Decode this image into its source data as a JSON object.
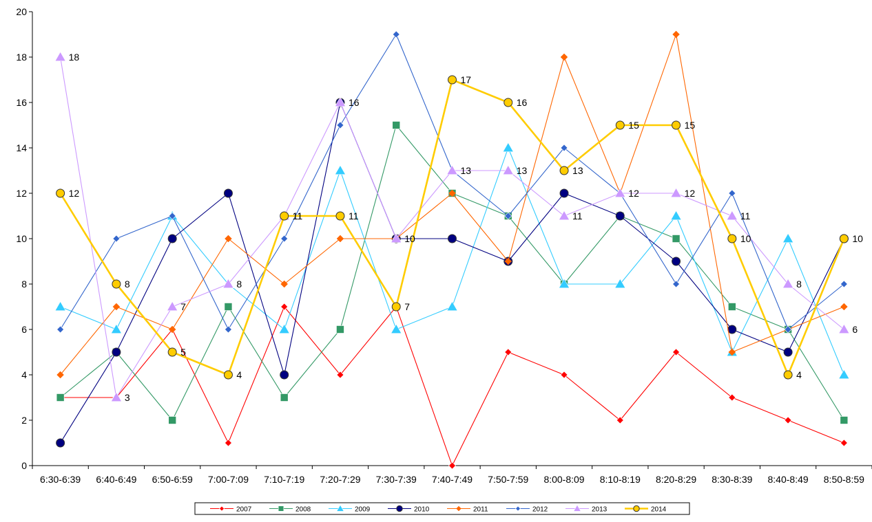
{
  "chart_data": {
    "type": "line",
    "title": "",
    "xlabel": "",
    "ylabel": "",
    "ylim": [
      0,
      20
    ],
    "ytick_step": 2,
    "yticks": [
      "0",
      "2",
      "4",
      "6",
      "8",
      "10",
      "12",
      "14",
      "16",
      "18",
      "20"
    ],
    "grid": false,
    "legend_position": "bottom",
    "categories": [
      "6:30-6:39",
      "6:40-6:49",
      "6:50-6:59",
      "7:00-7:09",
      "7:10-7:19",
      "7:20-7:29",
      "7:30-7:39",
      "7:40-7:49",
      "7:50-7:59",
      "8:00-8:09",
      "8:10-8:19",
      "8:20-8:29",
      "8:30-8:39",
      "8:40-8:49",
      "8:50-8:59"
    ],
    "series": [
      {
        "name": "2007",
        "color": "#ff0000",
        "marker": "diamond",
        "values": [
          3,
          3,
          6,
          1,
          7,
          4,
          7,
          0,
          5,
          4,
          2,
          5,
          3,
          2,
          1
        ]
      },
      {
        "name": "2008",
        "color": "#339966",
        "marker": "square",
        "values": [
          3,
          5,
          2,
          7,
          3,
          6,
          15,
          12,
          11,
          8,
          11,
          10,
          7,
          6,
          2
        ]
      },
      {
        "name": "2009",
        "color": "#33ccff",
        "marker": "triangle",
        "values": [
          7,
          6,
          11,
          8,
          6,
          13,
          6,
          7,
          14,
          8,
          8,
          11,
          5,
          10,
          4
        ]
      },
      {
        "name": "2010",
        "color": "#000080",
        "marker": "circle",
        "values": [
          1,
          5,
          10,
          12,
          4,
          16,
          10,
          10,
          9,
          12,
          11,
          9,
          6,
          5,
          10
        ]
      },
      {
        "name": "2011",
        "color": "#ff6600",
        "marker": "star",
        "values": [
          4,
          7,
          6,
          10,
          8,
          10,
          10,
          12,
          9,
          18,
          12,
          19,
          5,
          6,
          7
        ]
      },
      {
        "name": "2012",
        "color": "#3366cc",
        "marker": "diamond",
        "values": [
          6,
          10,
          11,
          6,
          10,
          15,
          19,
          13,
          11,
          14,
          12,
          8,
          12,
          6,
          8
        ]
      },
      {
        "name": "2013",
        "color": "#cc99ff",
        "marker": "triangle",
        "values": [
          18,
          3,
          7,
          8,
          11,
          16,
          10,
          13,
          13,
          11,
          12,
          12,
          11,
          8,
          6
        ]
      },
      {
        "name": "2014",
        "color": "#ffcc00",
        "marker": "circle",
        "values": [
          12,
          8,
          5,
          4,
          11,
          11,
          7,
          17,
          16,
          13,
          15,
          15,
          10,
          4,
          10
        ]
      }
    ],
    "data_labels": [
      {
        "series": "2013",
        "index": 0,
        "text": "18"
      },
      {
        "series": "2014",
        "index": 0,
        "text": "12"
      },
      {
        "series": "2014",
        "index": 1,
        "text": "8"
      },
      {
        "series": "2013",
        "index": 1,
        "text": "3"
      },
      {
        "series": "2013",
        "index": 2,
        "text": "7"
      },
      {
        "series": "2014",
        "index": 2,
        "text": "5"
      },
      {
        "series": "2013",
        "index": 3,
        "text": "8"
      },
      {
        "series": "2014",
        "index": 3,
        "text": "4"
      },
      {
        "series": "2014",
        "index": 4,
        "text": "11"
      },
      {
        "series": "2013",
        "index": 4,
        "text": "11"
      },
      {
        "series": "2013",
        "index": 5,
        "text": "16"
      },
      {
        "series": "2014",
        "index": 5,
        "text": "11"
      },
      {
        "series": "2013",
        "index": 6,
        "text": "10"
      },
      {
        "series": "2014",
        "index": 6,
        "text": "7"
      },
      {
        "series": "2014",
        "index": 7,
        "text": "17"
      },
      {
        "series": "2013",
        "index": 7,
        "text": "13"
      },
      {
        "series": "2014",
        "index": 8,
        "text": "16"
      },
      {
        "series": "2013",
        "index": 8,
        "text": "13"
      },
      {
        "series": "2014",
        "index": 9,
        "text": "13"
      },
      {
        "series": "2013",
        "index": 9,
        "text": "11"
      },
      {
        "series": "2014",
        "index": 10,
        "text": "15"
      },
      {
        "series": "2013",
        "index": 10,
        "text": "12"
      },
      {
        "series": "2014",
        "index": 11,
        "text": "15"
      },
      {
        "series": "2013",
        "index": 11,
        "text": "12"
      },
      {
        "series": "2013",
        "index": 12,
        "text": "11"
      },
      {
        "series": "2014",
        "index": 12,
        "text": "10"
      },
      {
        "series": "2013",
        "index": 13,
        "text": "8"
      },
      {
        "series": "2014",
        "index": 13,
        "text": "4"
      },
      {
        "series": "2014",
        "index": 14,
        "text": "10"
      },
      {
        "series": "2013",
        "index": 14,
        "text": "6"
      }
    ]
  }
}
